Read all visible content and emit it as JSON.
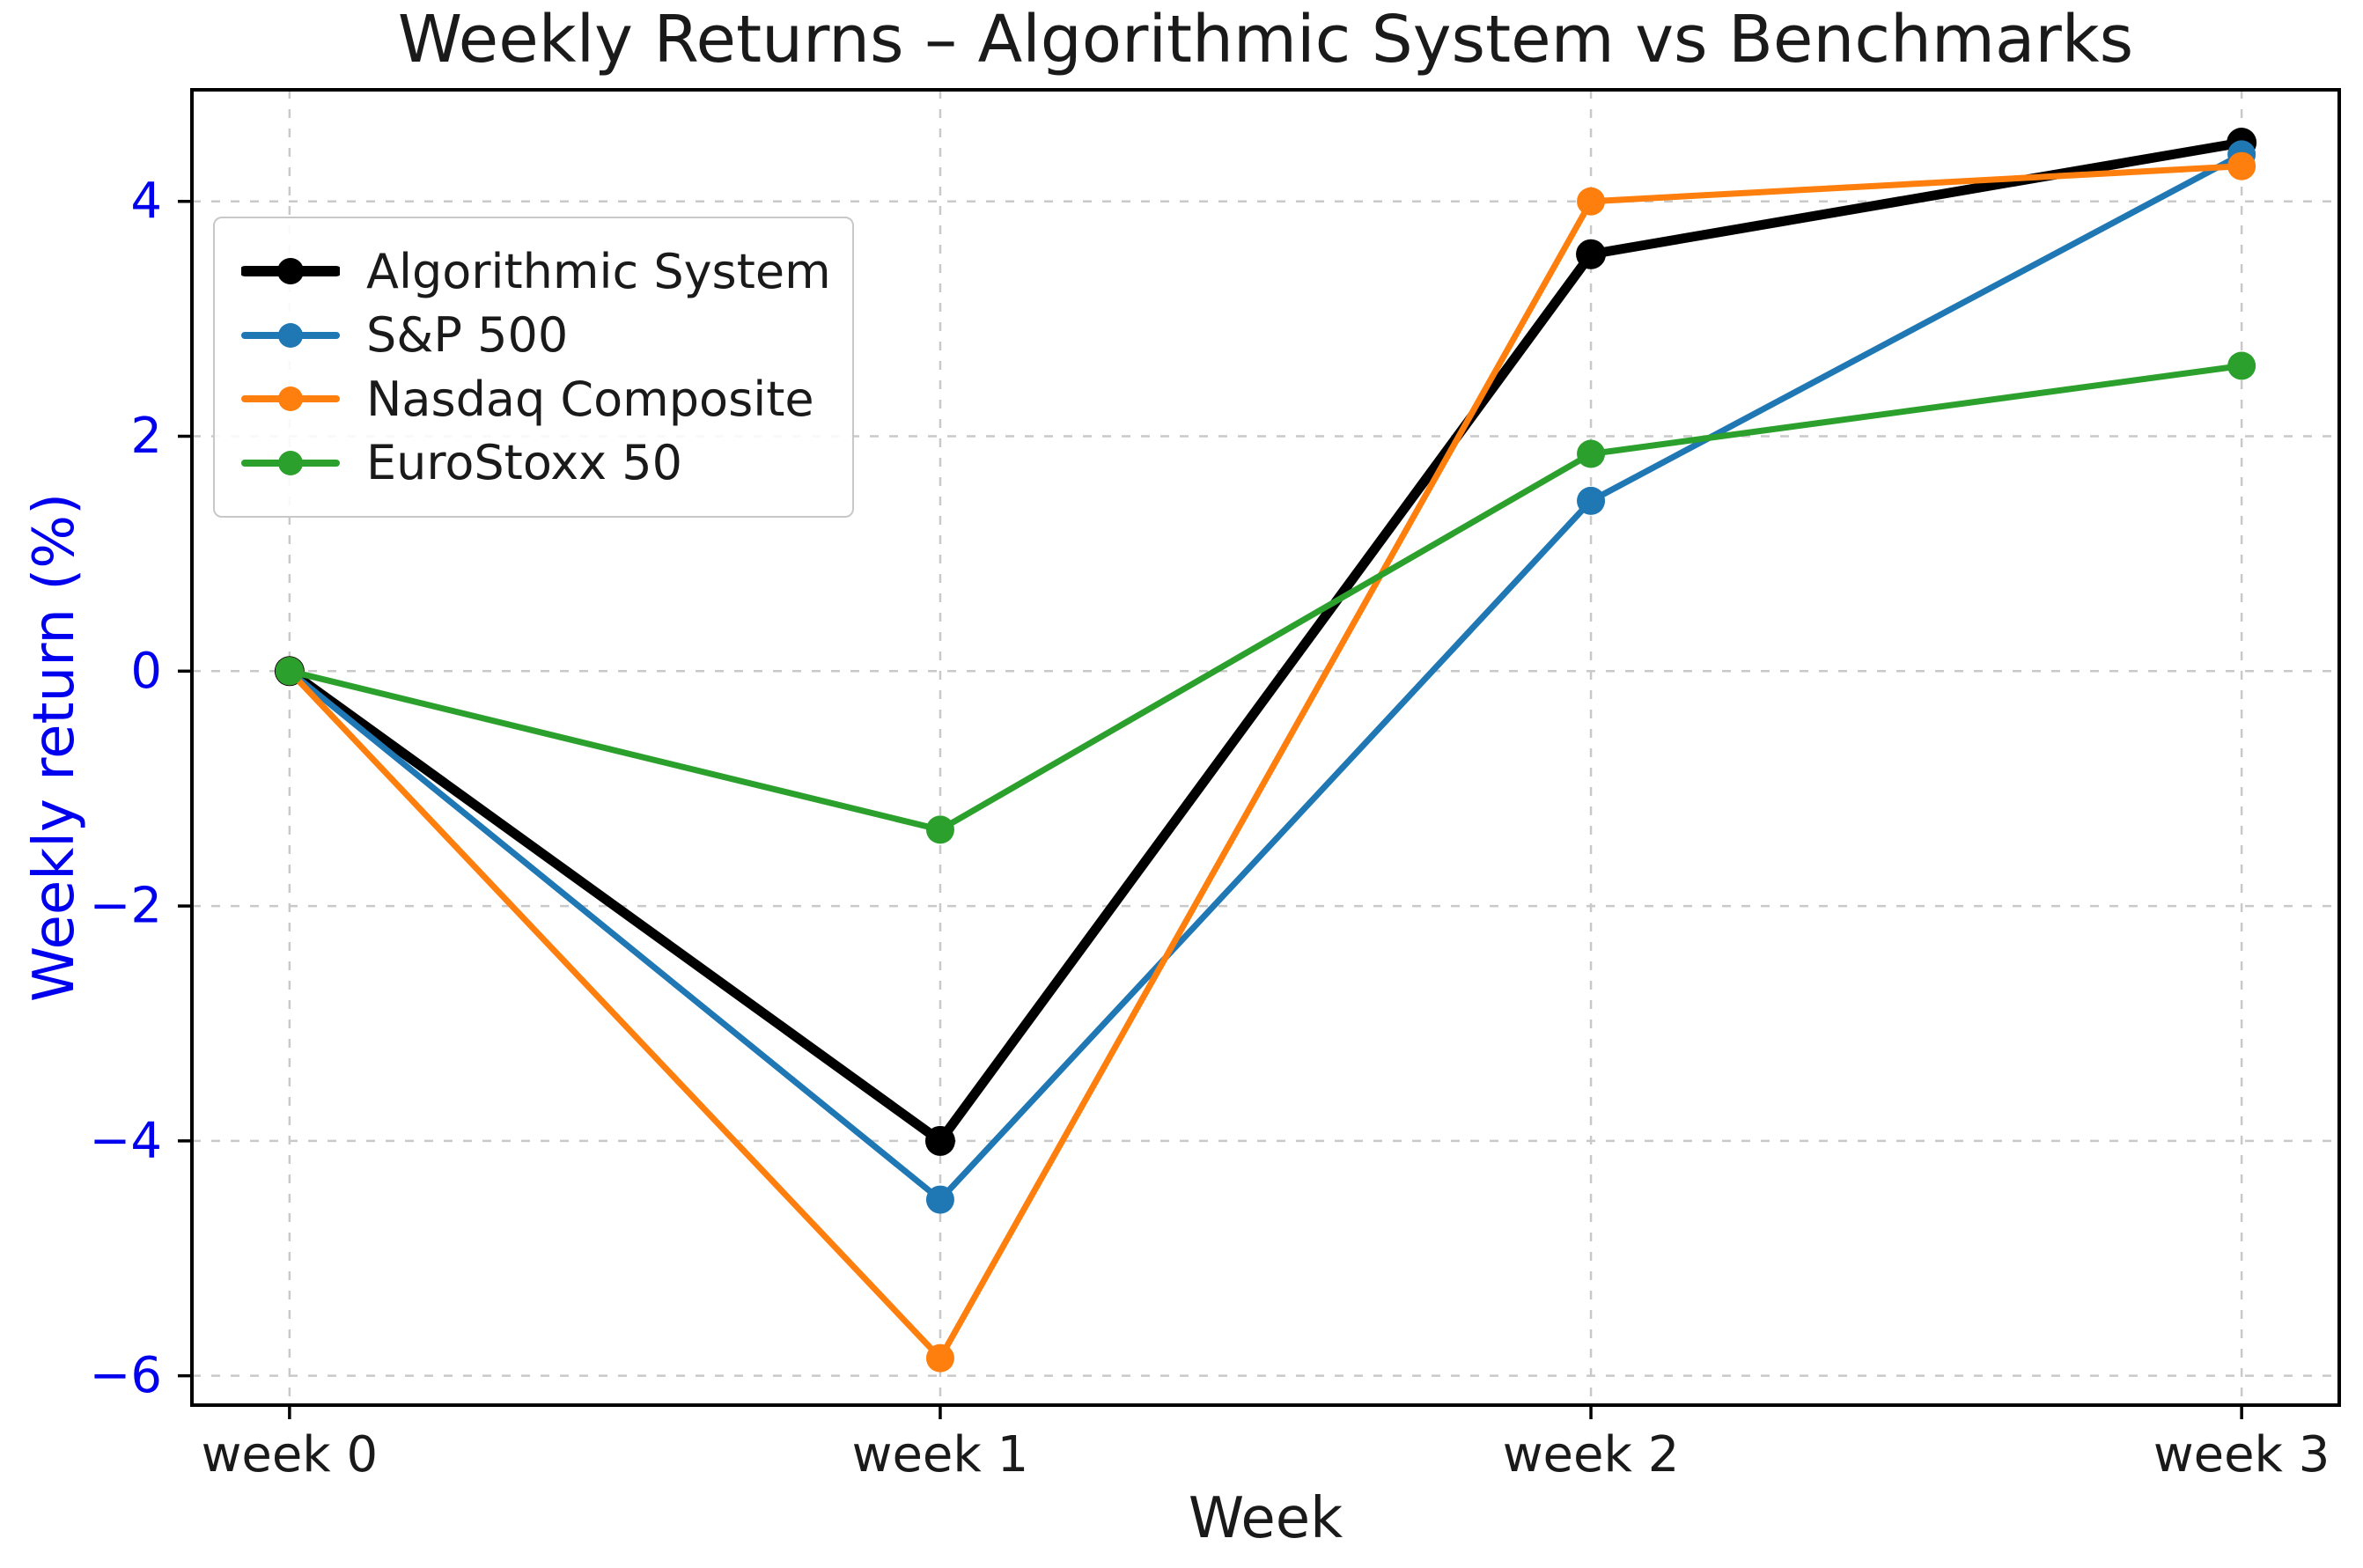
{
  "chart_data": {
    "type": "line",
    "title": "Weekly Returns – Algorithmic System vs Benchmarks",
    "xlabel": "Week",
    "ylabel": "Weekly return (%)",
    "categories": [
      "week 0",
      "week 1",
      "week 2",
      "week 3"
    ],
    "x": [
      0,
      1,
      2,
      3
    ],
    "series": [
      {
        "name": "Algorithmic System",
        "color": "#000000",
        "linewidth": 11,
        "marker": "circle",
        "marker_radius": 17,
        "values": [
          0,
          -4.0,
          3.55,
          4.5
        ]
      },
      {
        "name": "S&P 500",
        "color": "#1f77b4",
        "linewidth": 7,
        "marker": "circle",
        "marker_radius": 16,
        "values": [
          0,
          -4.5,
          1.45,
          4.4
        ]
      },
      {
        "name": "Nasdaq Composite",
        "color": "#ff7f0e",
        "linewidth": 7,
        "marker": "circle",
        "marker_radius": 16,
        "values": [
          0,
          -5.85,
          4.0,
          4.3
        ]
      },
      {
        "name": "EuroStoxx 50",
        "color": "#2ca02c",
        "linewidth": 7,
        "marker": "circle",
        "marker_radius": 16,
        "values": [
          0,
          -1.35,
          1.85,
          2.6
        ]
      }
    ],
    "yticks": [
      4,
      2,
      0,
      -2,
      -4,
      -6
    ],
    "ylim": [
      -6.25,
      4.95
    ],
    "xlim": [
      -0.15,
      3.15
    ],
    "grid": true,
    "grid_style": "dashed",
    "legend_position": "upper left",
    "colors": {
      "y_tick_text": "#0000ee",
      "x_tick_text": "#1a1a1a",
      "grid": "#c9c9c9",
      "spine": "#000000",
      "background": "#ffffff"
    }
  }
}
